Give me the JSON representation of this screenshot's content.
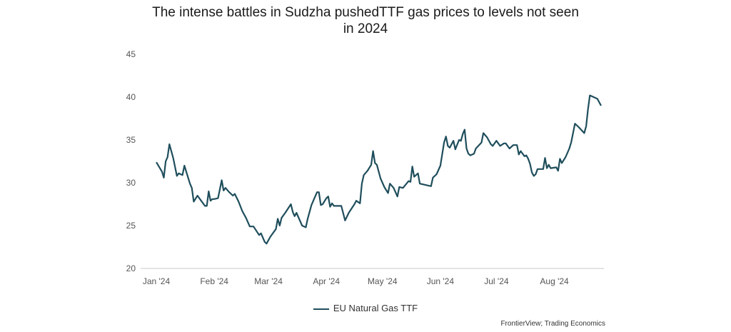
{
  "chart_data": {
    "type": "line",
    "title_lines": [
      "The intense battles in Sudzha pushedTTF gas prices to levels not seen",
      "in 2024"
    ],
    "xlabel": "",
    "ylabel": "",
    "x_ticks": [
      "Jan '24",
      "Feb '24",
      "Mar '24",
      "Apr '24",
      "May '24",
      "Jun '24",
      "Jul '24",
      "Aug '24"
    ],
    "y_ticks": [
      "20",
      "25",
      "30",
      "35",
      "40",
      "45"
    ],
    "ylim": [
      20,
      45
    ],
    "grid": false,
    "legend_position": "bottom",
    "source": "FrontierView; Trading Economics",
    "series": [
      {
        "name": "EU Natural Gas TTF",
        "color": "#1f4e5c",
        "points": [
          [
            "2024-01-01",
            32.4
          ],
          [
            "2024-01-04",
            31.3
          ],
          [
            "2024-01-05",
            30.6
          ],
          [
            "2024-01-06",
            32.5
          ],
          [
            "2024-01-07",
            33.0
          ],
          [
            "2024-01-08",
            34.5
          ],
          [
            "2024-01-10",
            32.9
          ],
          [
            "2024-01-12",
            30.8
          ],
          [
            "2024-01-13",
            31.1
          ],
          [
            "2024-01-15",
            30.9
          ],
          [
            "2024-01-16",
            32.0
          ],
          [
            "2024-01-19",
            29.9
          ],
          [
            "2024-01-20",
            29.4
          ],
          [
            "2024-01-21",
            27.8
          ],
          [
            "2024-01-23",
            28.5
          ],
          [
            "2024-01-25",
            27.9
          ],
          [
            "2024-01-27",
            27.3
          ],
          [
            "2024-01-28",
            27.3
          ],
          [
            "2024-01-29",
            29.0
          ],
          [
            "2024-01-30",
            27.9
          ],
          [
            "2024-01-31",
            28.1
          ],
          [
            "2024-02-01",
            28.1
          ],
          [
            "2024-02-03",
            28.2
          ],
          [
            "2024-02-05",
            30.3
          ],
          [
            "2024-02-06",
            29.1
          ],
          [
            "2024-02-07",
            29.4
          ],
          [
            "2024-02-09",
            28.9
          ],
          [
            "2024-02-11",
            28.5
          ],
          [
            "2024-02-12",
            28.7
          ],
          [
            "2024-02-14",
            27.8
          ],
          [
            "2024-02-16",
            26.7
          ],
          [
            "2024-02-18",
            25.9
          ],
          [
            "2024-02-20",
            24.9
          ],
          [
            "2024-02-22",
            24.9
          ],
          [
            "2024-02-25",
            23.9
          ],
          [
            "2024-02-26",
            24.1
          ],
          [
            "2024-02-28",
            23.1
          ],
          [
            "2024-02-29",
            22.9
          ],
          [
            "2024-03-02",
            23.7
          ],
          [
            "2024-03-05",
            24.6
          ],
          [
            "2024-03-06",
            25.8
          ],
          [
            "2024-03-07",
            25.0
          ],
          [
            "2024-03-08",
            25.9
          ],
          [
            "2024-03-10",
            26.5
          ],
          [
            "2024-03-13",
            27.5
          ],
          [
            "2024-03-14",
            26.6
          ],
          [
            "2024-03-15",
            26.1
          ],
          [
            "2024-03-16",
            26.5
          ],
          [
            "2024-03-19",
            25.0
          ],
          [
            "2024-03-21",
            24.8
          ],
          [
            "2024-03-22",
            25.8
          ],
          [
            "2024-03-24",
            27.4
          ],
          [
            "2024-03-27",
            28.9
          ],
          [
            "2024-03-28",
            28.9
          ],
          [
            "2024-03-29",
            27.4
          ],
          [
            "2024-03-30",
            27.5
          ],
          [
            "2024-04-01",
            28.2
          ],
          [
            "2024-04-02",
            28.4
          ],
          [
            "2024-04-03",
            27.2
          ],
          [
            "2024-04-04",
            27.6
          ],
          [
            "2024-04-05",
            27.3
          ],
          [
            "2024-04-09",
            27.3
          ],
          [
            "2024-04-11",
            25.6
          ],
          [
            "2024-04-13",
            26.5
          ],
          [
            "2024-04-16",
            27.5
          ],
          [
            "2024-04-17",
            27.9
          ],
          [
            "2024-04-19",
            27.6
          ],
          [
            "2024-04-20",
            29.9
          ],
          [
            "2024-04-21",
            30.9
          ],
          [
            "2024-04-23",
            31.4
          ],
          [
            "2024-04-25",
            32.1
          ],
          [
            "2024-04-26",
            33.7
          ],
          [
            "2024-04-27",
            32.3
          ],
          [
            "2024-04-28",
            32.1
          ],
          [
            "2024-04-29",
            31.3
          ],
          [
            "2024-04-30",
            30.5
          ],
          [
            "2024-05-02",
            29.5
          ],
          [
            "2024-05-04",
            28.8
          ],
          [
            "2024-05-05",
            29.9
          ],
          [
            "2024-05-07",
            29.4
          ],
          [
            "2024-05-09",
            28.4
          ],
          [
            "2024-05-10",
            29.5
          ],
          [
            "2024-05-12",
            29.4
          ],
          [
            "2024-05-15",
            30.2
          ],
          [
            "2024-05-16",
            30.1
          ],
          [
            "2024-05-17",
            31.9
          ],
          [
            "2024-05-18",
            30.7
          ],
          [
            "2024-05-20",
            31.1
          ],
          [
            "2024-05-21",
            29.9
          ],
          [
            "2024-05-27",
            29.6
          ],
          [
            "2024-05-28",
            30.6
          ],
          [
            "2024-05-30",
            31.0
          ],
          [
            "2024-06-01",
            32.0
          ],
          [
            "2024-06-03",
            34.7
          ],
          [
            "2024-06-04",
            35.4
          ],
          [
            "2024-06-05",
            34.3
          ],
          [
            "2024-06-06",
            34.1
          ],
          [
            "2024-06-08",
            34.9
          ],
          [
            "2024-06-09",
            33.9
          ],
          [
            "2024-06-11",
            35.0
          ],
          [
            "2024-06-12",
            34.9
          ],
          [
            "2024-06-13",
            35.7
          ],
          [
            "2024-06-14",
            36.2
          ],
          [
            "2024-06-15",
            34.0
          ],
          [
            "2024-06-16",
            33.4
          ],
          [
            "2024-06-17",
            33.2
          ],
          [
            "2024-06-19",
            33.4
          ],
          [
            "2024-06-20",
            34.0
          ],
          [
            "2024-06-23",
            34.7
          ],
          [
            "2024-06-24",
            35.8
          ],
          [
            "2024-06-26",
            35.3
          ],
          [
            "2024-06-28",
            34.5
          ],
          [
            "2024-06-29",
            34.3
          ],
          [
            "2024-07-01",
            34.9
          ],
          [
            "2024-07-03",
            34.3
          ],
          [
            "2024-07-05",
            34.6
          ],
          [
            "2024-07-06",
            34.6
          ],
          [
            "2024-07-08",
            34.0
          ],
          [
            "2024-07-10",
            34.4
          ],
          [
            "2024-07-12",
            34.4
          ],
          [
            "2024-07-13",
            33.3
          ],
          [
            "2024-07-14",
            33.7
          ],
          [
            "2024-07-16",
            33.1
          ],
          [
            "2024-07-17",
            33.2
          ],
          [
            "2024-07-18",
            32.8
          ],
          [
            "2024-07-19",
            32.2
          ],
          [
            "2024-07-20",
            31.2
          ],
          [
            "2024-07-21",
            30.8
          ],
          [
            "2024-07-22",
            31.0
          ],
          [
            "2024-07-23",
            31.6
          ],
          [
            "2024-07-26",
            31.6
          ],
          [
            "2024-07-27",
            32.9
          ],
          [
            "2024-07-28",
            31.7
          ],
          [
            "2024-07-29",
            32.1
          ],
          [
            "2024-07-30",
            31.7
          ],
          [
            "2024-08-02",
            31.8
          ],
          [
            "2024-08-03",
            31.4
          ],
          [
            "2024-08-04",
            32.8
          ],
          [
            "2024-08-05",
            32.3
          ],
          [
            "2024-08-07",
            33.0
          ],
          [
            "2024-08-09",
            34.0
          ],
          [
            "2024-08-10",
            34.7
          ],
          [
            "2024-08-12",
            36.9
          ],
          [
            "2024-08-14",
            36.5
          ],
          [
            "2024-08-17",
            35.8
          ],
          [
            "2024-08-18",
            36.6
          ],
          [
            "2024-08-19",
            38.6
          ],
          [
            "2024-08-20",
            40.2
          ],
          [
            "2024-08-21",
            40.1
          ],
          [
            "2024-08-24",
            39.8
          ],
          [
            "2024-08-26",
            39.0
          ]
        ]
      }
    ]
  }
}
